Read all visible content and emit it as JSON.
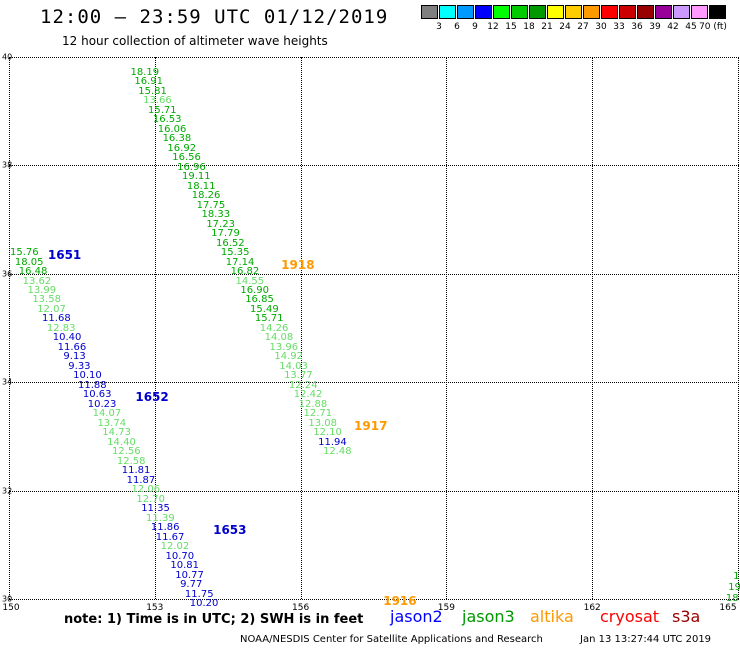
{
  "title": "12:00 – 23:59 UTC 01/12/2019",
  "subtitle": "12 hour collection of altimeter wave heights",
  "scale": {
    "labels": [
      "3",
      "6",
      "9",
      "12",
      "15",
      "18",
      "21",
      "24",
      "27",
      "30",
      "33",
      "36",
      "39",
      "42",
      "45",
      "70 (ft)"
    ],
    "colors": [
      "#7f7f7f",
      "#00ffff",
      "#0099ff",
      "#0000ff",
      "#00ff00",
      "#00cc00",
      "#009900",
      "#ffff00",
      "#ffcc00",
      "#ff9900",
      "#ff0000",
      "#cc0000",
      "#990000",
      "#990099",
      "#cc99ff",
      "#ff99ff",
      "#000000"
    ]
  },
  "axes": {
    "lat_labels": [
      "40",
      "38",
      "36",
      "34",
      "32",
      "30"
    ],
    "lat_values": [
      40,
      38,
      36,
      34,
      32,
      30
    ],
    "lon_labels": [
      "150",
      "153",
      "156",
      "159",
      "162",
      "165"
    ],
    "lon_values": [
      150,
      153,
      156,
      159,
      162,
      165
    ]
  },
  "tracks": [
    {
      "time": "1651",
      "time_color": "#0000cc",
      "time_lon": 150.8,
      "time_lat": 37.2,
      "points": [
        [
          150.02,
          37.2,
          "15.76",
          "#00aa00"
        ],
        [
          150.12,
          37.0,
          "18.05",
          "#00aa00"
        ],
        [
          150.2,
          36.8,
          "16.48",
          "#00aa00"
        ],
        [
          150.28,
          36.6,
          "13.62",
          "#66dd66"
        ],
        [
          150.38,
          36.4,
          "13.99",
          "#66dd66"
        ],
        [
          150.48,
          36.2,
          "13.58",
          "#66dd66"
        ],
        [
          150.58,
          36.0,
          "12.07",
          "#66dd66"
        ],
        [
          150.68,
          35.8,
          "11.68",
          "#0000cc"
        ],
        [
          150.78,
          35.6,
          "12.83",
          "#66dd66"
        ],
        [
          150.9,
          35.4,
          "10.40",
          "#0000cc"
        ],
        [
          151.0,
          35.2,
          "11.66",
          "#0000cc"
        ],
        [
          151.12,
          35.0,
          "9.13",
          "#0000cc"
        ],
        [
          151.22,
          34.8,
          "9.33",
          "#0000cc"
        ],
        [
          151.32,
          34.6,
          "10.10",
          "#0000cc"
        ],
        [
          151.42,
          34.4,
          "11.88",
          "#0000cc"
        ],
        [
          151.52,
          34.2,
          "10.63",
          "#0000cc"
        ],
        [
          151.62,
          34.0,
          "10.23",
          "#0000cc"
        ]
      ]
    },
    {
      "time": "1652",
      "time_color": "#0000cc",
      "time_lon": 152.6,
      "time_lat": 34.2,
      "points": [
        [
          151.72,
          33.8,
          "14.07",
          "#66dd66"
        ],
        [
          151.82,
          33.6,
          "13.74",
          "#66dd66"
        ],
        [
          151.92,
          33.4,
          "14.73",
          "#66dd66"
        ],
        [
          152.02,
          33.2,
          "14.40",
          "#66dd66"
        ],
        [
          152.12,
          33.0,
          "12.56",
          "#66dd66"
        ],
        [
          152.22,
          32.8,
          "12.58",
          "#66dd66"
        ],
        [
          152.32,
          32.6,
          "11.81",
          "#0000cc"
        ],
        [
          152.42,
          32.4,
          "11.87",
          "#0000cc"
        ],
        [
          152.52,
          32.2,
          "12.06",
          "#66dd66"
        ],
        [
          152.62,
          32.0,
          "12.70",
          "#66dd66"
        ],
        [
          152.72,
          31.8,
          "11.35",
          "#0000cc"
        ],
        [
          152.82,
          31.6,
          "11.39",
          "#66dd66"
        ],
        [
          152.92,
          31.4,
          "11.86",
          "#0000cc"
        ],
        [
          153.02,
          31.2,
          "11.67",
          "#0000cc"
        ],
        [
          153.12,
          31.0,
          "12.02",
          "#66dd66"
        ],
        [
          153.22,
          30.8,
          "10.70",
          "#0000cc"
        ],
        [
          153.32,
          30.6,
          "10.81",
          "#0000cc"
        ],
        [
          153.42,
          30.4,
          "10.77",
          "#0000cc"
        ],
        [
          153.52,
          30.2,
          "9.77",
          "#0000cc"
        ],
        [
          153.62,
          30.0,
          "11.75",
          "#0000cc"
        ],
        [
          153.72,
          29.8,
          "10.20",
          "#0000cc"
        ]
      ]
    },
    {
      "time": "1653",
      "time_color": "#0000cc",
      "time_lon": 154.2,
      "time_lat": 31.4,
      "points": []
    },
    {
      "time": "1918",
      "time_color": "#ff9900",
      "time_lon": 155.6,
      "time_lat": 37.0,
      "points": [
        [
          152.5,
          41.0,
          "18.19",
          "#00aa00"
        ],
        [
          152.58,
          40.8,
          "16.91",
          "#00aa00"
        ],
        [
          152.66,
          40.6,
          "15.81",
          "#00aa00"
        ],
        [
          152.76,
          40.4,
          "13.66",
          "#66dd66"
        ],
        [
          152.86,
          40.2,
          "15.71",
          "#00aa00"
        ],
        [
          152.96,
          40.0,
          "16.53",
          "#00aa00"
        ],
        [
          153.06,
          39.8,
          "16.06",
          "#00aa00"
        ],
        [
          153.16,
          39.6,
          "16.38",
          "#00aa00"
        ],
        [
          153.26,
          39.4,
          "16.92",
          "#00aa00"
        ],
        [
          153.36,
          39.2,
          "16.56",
          "#00aa00"
        ],
        [
          153.46,
          39.0,
          "16.96",
          "#00aa00"
        ],
        [
          153.56,
          38.8,
          "19.11",
          "#00aa00"
        ],
        [
          153.66,
          38.6,
          "18.11",
          "#00aa00"
        ],
        [
          153.76,
          38.4,
          "18.26",
          "#00aa00"
        ],
        [
          153.86,
          38.2,
          "17.75",
          "#00aa00"
        ],
        [
          153.96,
          38.0,
          "18.33",
          "#00aa00"
        ],
        [
          154.06,
          37.8,
          "17.23",
          "#00aa00"
        ],
        [
          154.16,
          37.6,
          "17.79",
          "#00aa00"
        ],
        [
          154.26,
          37.4,
          "16.52",
          "#00aa00"
        ],
        [
          154.36,
          37.2,
          "15.35",
          "#00aa00"
        ],
        [
          154.46,
          37.0,
          "17.14",
          "#00aa00"
        ],
        [
          154.56,
          36.8,
          "16.82",
          "#00aa00"
        ],
        [
          154.66,
          36.6,
          "14.55",
          "#66dd66"
        ],
        [
          154.76,
          36.4,
          "16.90",
          "#00aa00"
        ],
        [
          154.86,
          36.2,
          "16.85",
          "#00aa00"
        ],
        [
          154.96,
          36.0,
          "15.49",
          "#00aa00"
        ],
        [
          155.06,
          35.8,
          "15.71",
          "#00aa00"
        ]
      ]
    },
    {
      "time": "1917",
      "time_color": "#ff9900",
      "time_lon": 157.1,
      "time_lat": 33.6,
      "points": [
        [
          155.16,
          35.6,
          "14.26",
          "#66dd66"
        ],
        [
          155.26,
          35.4,
          "14.08",
          "#66dd66"
        ],
        [
          155.36,
          35.2,
          "13.96",
          "#66dd66"
        ],
        [
          155.46,
          35.0,
          "14.92",
          "#66dd66"
        ],
        [
          155.56,
          34.8,
          "14.03",
          "#66dd66"
        ],
        [
          155.66,
          34.6,
          "13.77",
          "#66dd66"
        ],
        [
          155.76,
          34.4,
          "12.24",
          "#66dd66"
        ],
        [
          155.86,
          34.2,
          "12.42",
          "#66dd66"
        ],
        [
          155.96,
          34.0,
          "12.88",
          "#66dd66"
        ],
        [
          156.06,
          33.8,
          "12.71",
          "#66dd66"
        ],
        [
          156.16,
          33.6,
          "13.08",
          "#66dd66"
        ],
        [
          156.26,
          33.4,
          "12.10",
          "#66dd66"
        ],
        [
          156.36,
          33.2,
          "11.94",
          "#0000cc"
        ],
        [
          156.46,
          33.0,
          "12.48",
          "#66dd66"
        ]
      ]
    },
    {
      "time": "1916",
      "time_color": "#ff9900",
      "time_lon": 157.7,
      "time_lat": 29.9,
      "points": []
    }
  ],
  "edge_values": [
    {
      "lon": 164.9,
      "lat": 30.5,
      "label": "1",
      "color": "#00aa00"
    },
    {
      "lon": 164.8,
      "lat": 30.3,
      "label": "19",
      "color": "#00aa00"
    },
    {
      "lon": 164.75,
      "lat": 30.1,
      "label": "18",
      "color": "#00aa00"
    }
  ],
  "note": "note:  1) Time is in UTC;  2) SWH is in feet",
  "satellites": [
    {
      "name": "jason2",
      "color": "#0000ff"
    },
    {
      "name": "jason3",
      "color": "#009900"
    },
    {
      "name": "altika",
      "color": "#ff9900"
    },
    {
      "name": "cryosat",
      "color": "#ff0000"
    },
    {
      "name": "s3a",
      "color": "#990000"
    }
  ],
  "credit": "NOAA/NESDIS Center for Satellite Applications and Research",
  "timestamp": "Jan 13 13:27:44 UTC 2019"
}
